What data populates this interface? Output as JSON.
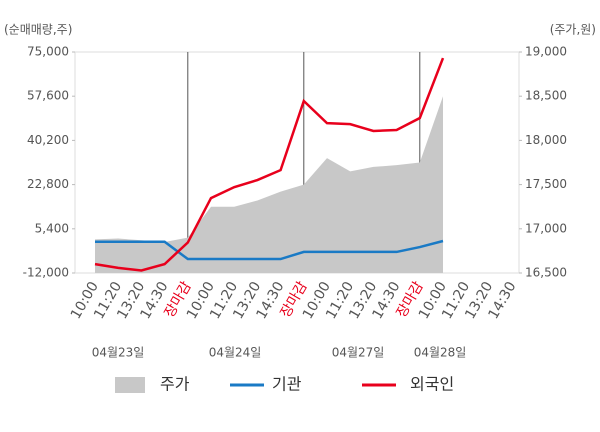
{
  "chart_data": {
    "type": "line",
    "ylabel": "(순매매량,주)",
    "y2label": "(주가,원)",
    "categories": [
      "10:00",
      "11:20",
      "13:20",
      "14:30",
      "장마감",
      "10:00",
      "11:20",
      "13:20",
      "14:30",
      "장마감",
      "10:00",
      "11:20",
      "13:20",
      "14:30",
      "장마감",
      "10:00",
      "11:20",
      "13:20",
      "14:30"
    ],
    "dates": [
      "04월23일",
      "04월24일",
      "04월27일",
      "04월28일"
    ],
    "ylim": [
      -12000,
      75000
    ],
    "yticks": [
      {
        "value": -12000,
        "label": "-12,000"
      },
      {
        "value": 5400,
        "label": "5,400"
      },
      {
        "value": 22800,
        "label": "22,800"
      },
      {
        "value": 40200,
        "label": "40,200"
      },
      {
        "value": 57600,
        "label": "57,600"
      },
      {
        "value": 75000,
        "label": "75,000"
      }
    ],
    "y2lim": [
      16500,
      19000
    ],
    "y2ticks": [
      {
        "value": 16500,
        "label": "16,500"
      },
      {
        "value": 17000,
        "label": "17,000"
      },
      {
        "value": 17500,
        "label": "17,500"
      },
      {
        "value": 18000,
        "label": "18,000"
      },
      {
        "value": 18500,
        "label": "18,500"
      },
      {
        "value": 19000,
        "label": "19,000"
      }
    ],
    "series": [
      {
        "name": "주가",
        "type": "area",
        "axis": "y2",
        "color": "#c8c8c8",
        "values": [
          16880,
          16890,
          16870,
          16850,
          16900,
          17250,
          17250,
          17320,
          17420,
          17500,
          17800,
          17650,
          17700,
          17720,
          17750,
          18500,
          null,
          null,
          null
        ]
      },
      {
        "name": "기관",
        "color": "#1a7ac5",
        "values": [
          300,
          300,
          300,
          300,
          -6500,
          -6500,
          -6500,
          -6500,
          -6500,
          -3700,
          -3700,
          -3700,
          -3700,
          -3700,
          -1800,
          600,
          null,
          null,
          null
        ]
      },
      {
        "name": "외국인",
        "color": "#e8001c",
        "values": [
          -8500,
          -10000,
          -11000,
          -8500,
          0,
          17500,
          21800,
          24600,
          28500,
          55700,
          47000,
          46600,
          43900,
          44300,
          49000,
          72600,
          null,
          null,
          null
        ]
      }
    ]
  }
}
